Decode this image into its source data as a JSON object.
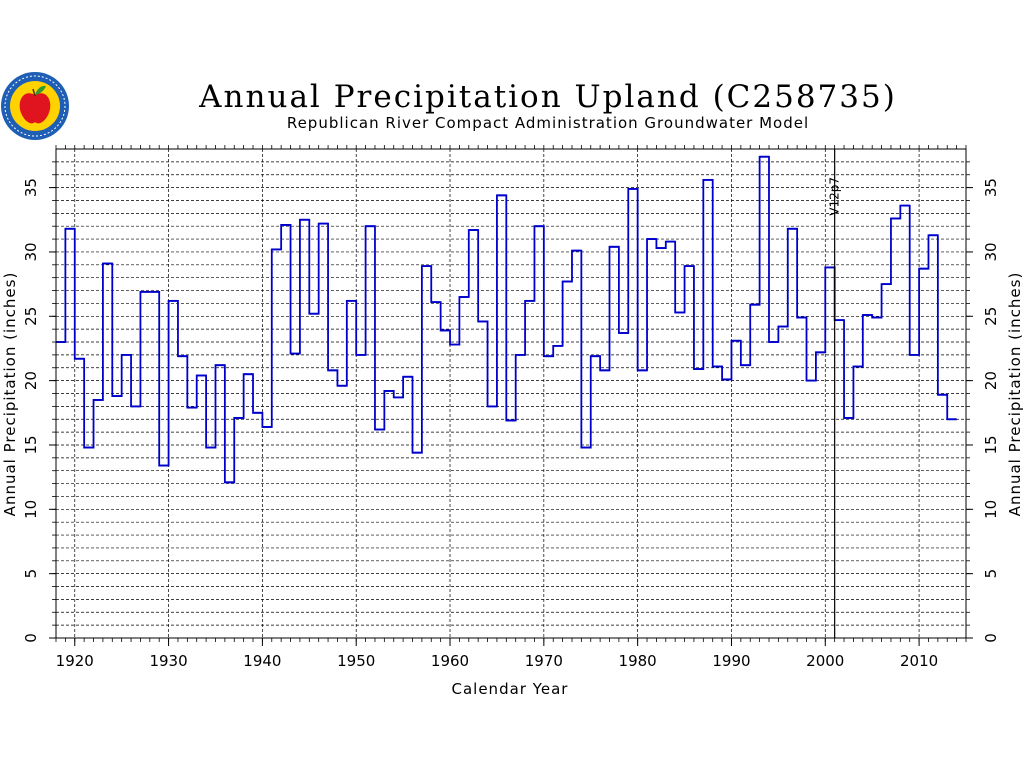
{
  "chart_data": {
    "type": "line",
    "step": true,
    "title": "Annual Precipitation Upland (C258735)",
    "subtitle": "Republican River Compact Administration Groundwater Model",
    "xlabel": "Calendar Year",
    "ylabel": "Annual Precipitation (inches)",
    "ylabel_right": "Annual Precipitation (inches)",
    "xlim": [
      1918,
      2015
    ],
    "ylim": [
      0,
      38
    ],
    "xticks": [
      1920,
      1930,
      1940,
      1950,
      1960,
      1970,
      1980,
      1990,
      2000,
      2010
    ],
    "yticks": [
      0,
      5,
      10,
      15,
      20,
      25,
      30,
      35
    ],
    "ytick_labels": [
      "0",
      "5",
      "10",
      "15",
      "20",
      "25",
      "30",
      "35"
    ],
    "xtick_labels": [
      "1920",
      "1930",
      "1940",
      "1950",
      "1960",
      "1970",
      "1980",
      "1990",
      "2000",
      "2010"
    ],
    "grid": true,
    "series_color": "#0000cc",
    "x": [
      1918,
      1919,
      1920,
      1921,
      1922,
      1923,
      1924,
      1925,
      1926,
      1927,
      1928,
      1929,
      1930,
      1931,
      1932,
      1933,
      1934,
      1935,
      1936,
      1937,
      1938,
      1939,
      1940,
      1941,
      1942,
      1943,
      1944,
      1945,
      1946,
      1947,
      1948,
      1949,
      1950,
      1951,
      1952,
      1953,
      1954,
      1955,
      1956,
      1957,
      1958,
      1959,
      1960,
      1961,
      1962,
      1963,
      1964,
      1965,
      1966,
      1967,
      1968,
      1969,
      1970,
      1971,
      1972,
      1973,
      1974,
      1975,
      1976,
      1977,
      1978,
      1979,
      1980,
      1981,
      1982,
      1983,
      1984,
      1985,
      1986,
      1987,
      1988,
      1989,
      1990,
      1991,
      1992,
      1993,
      1994,
      1995,
      1996,
      1997,
      1998,
      1999,
      2000,
      2001,
      2002,
      2003,
      2004,
      2005,
      2006,
      2007,
      2008,
      2009,
      2010,
      2011,
      2012,
      2013
    ],
    "values": [
      23.0,
      31.8,
      21.7,
      14.8,
      18.5,
      29.1,
      18.8,
      22.0,
      18.0,
      26.9,
      26.9,
      13.4,
      26.2,
      21.9,
      17.9,
      20.4,
      14.8,
      21.2,
      12.1,
      17.1,
      20.5,
      17.5,
      16.4,
      30.2,
      32.1,
      22.1,
      32.5,
      25.2,
      32.2,
      20.8,
      19.6,
      26.2,
      22.0,
      32.0,
      16.2,
      19.2,
      18.7,
      20.3,
      14.4,
      28.9,
      26.1,
      23.9,
      22.8,
      26.5,
      31.7,
      24.6,
      18.0,
      34.4,
      16.9,
      22.0,
      26.2,
      32.0,
      21.9,
      22.7,
      27.7,
      30.1,
      14.8,
      21.9,
      20.8,
      30.4,
      23.7,
      34.9,
      20.8,
      31.0,
      30.3,
      30.8,
      25.3,
      28.9,
      20.9,
      35.6,
      21.1,
      20.1,
      23.1,
      21.2,
      25.9,
      37.4,
      23.0,
      24.2,
      31.8,
      24.9,
      20.0,
      22.2,
      28.8,
      24.7,
      17.1,
      21.1,
      25.1,
      24.9,
      27.5,
      32.6,
      33.6,
      22.0,
      28.7,
      31.3,
      18.9,
      17.0
    ],
    "annotations": [
      {
        "text": "V12p7",
        "x": 2001
      }
    ]
  },
  "logo": {
    "name": "seal-logo",
    "colors": {
      "ring": "#1e5fb5",
      "inner": "#ffd200",
      "apple": "#e0141e",
      "leaf": "#2d9a2d"
    }
  }
}
